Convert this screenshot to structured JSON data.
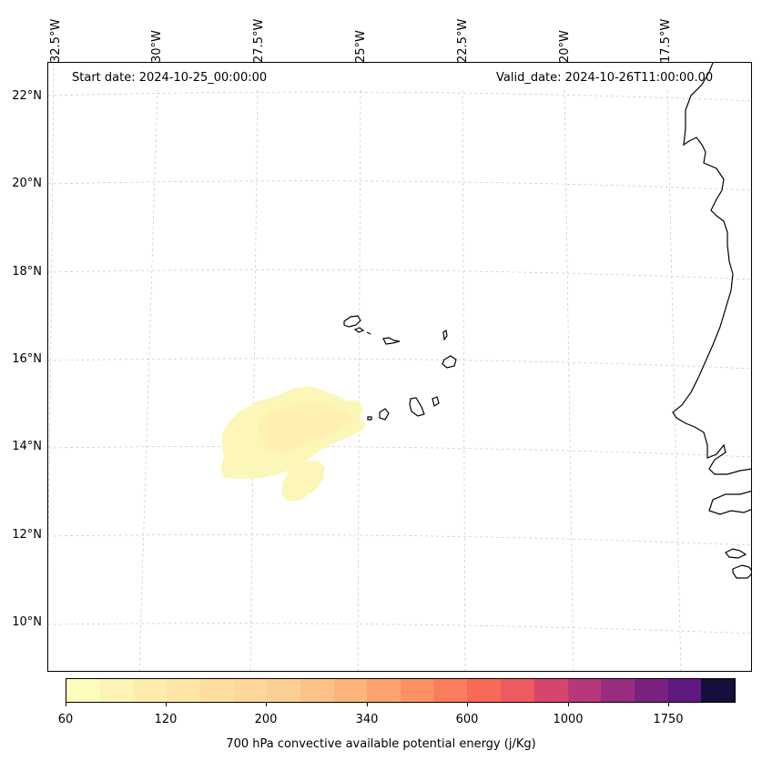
{
  "map": {
    "start_date": "Start date: 2024-10-25_00:00:00",
    "valid_date": "Valid_date: 2024-10-26T11:00:00.00",
    "lon_labels": [
      "32.5°W",
      "30°W",
      "27.5°W",
      "25°W",
      "22.5°W",
      "20°W",
      "17.5°W"
    ],
    "lat_labels": [
      "22°N",
      "20°N",
      "18°N",
      "16°N",
      "14°N",
      "12°N",
      "10°N"
    ],
    "gridlines": true,
    "region": "Cape Verde / West Africa"
  },
  "colorbar": {
    "label": "700 hPa convective available potential energy (j/Kg)",
    "ticks": [
      "60",
      "120",
      "200",
      "340",
      "600",
      "1000",
      "1750"
    ],
    "colors": [
      "#fcfdbf",
      "#fcf4b6",
      "#fdecad",
      "#fee5a6",
      "#fede9f",
      "#fed799",
      "#fecf92",
      "#fec287",
      "#feb47b",
      "#fea26f",
      "#fd9163",
      "#fb7d5b",
      "#f76a58",
      "#ee5a5f",
      "#d6456c",
      "#b73779",
      "#982d80",
      "#7a2180",
      "#5e1a80",
      "#160f3b"
    ]
  }
}
